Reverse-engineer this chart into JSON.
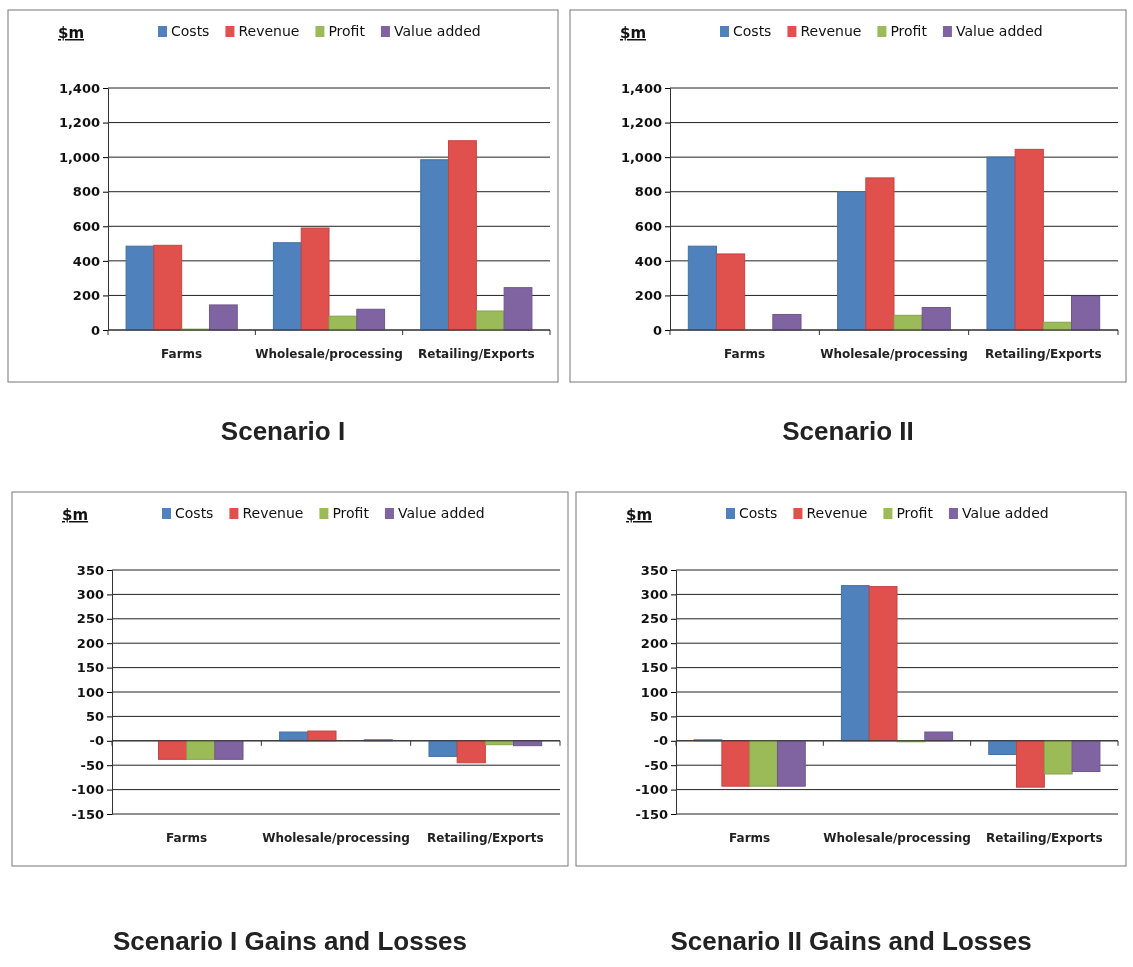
{
  "chart_data": [
    {
      "type": "bar",
      "title": "Scenario I",
      "ylabel": "$m",
      "categories": [
        "Farms",
        "Wholesale/processing",
        "Retailing/Exports"
      ],
      "legend": "top",
      "grid": "y",
      "ylim": [
        0,
        1400
      ],
      "yticks": [
        0,
        200,
        400,
        600,
        800,
        {
          "value": 1000,
          "label": "1,000"
        },
        {
          "value": 1200,
          "label": "1,200"
        },
        {
          "value": 1400,
          "label": "1,400"
        }
      ],
      "series": [
        {
          "name": "Costs",
          "color": "#4f81bd",
          "values": [
            485,
            505,
            985
          ]
        },
        {
          "name": "Revenue",
          "color": "#e0504d",
          "values": [
            490,
            590,
            1095
          ]
        },
        {
          "name": "Profit",
          "color": "#9bbb59",
          "values": [
            5,
            80,
            110
          ]
        },
        {
          "name": "Value added",
          "color": "#8064a2",
          "values": [
            145,
            120,
            245
          ]
        }
      ]
    },
    {
      "type": "bar",
      "title": "Scenario II",
      "ylabel": "$m",
      "categories": [
        "Farms",
        "Wholesale/processing",
        "Retailing/Exports"
      ],
      "legend": "top",
      "grid": "y",
      "ylim": [
        0,
        1400
      ],
      "yticks": [
        0,
        200,
        400,
        600,
        800,
        {
          "value": 1000,
          "label": "1,000"
        },
        {
          "value": 1200,
          "label": "1,200"
        },
        {
          "value": 1400,
          "label": "1,400"
        }
      ],
      "series": [
        {
          "name": "Costs",
          "color": "#4f81bd",
          "values": [
            485,
            800,
            1000
          ]
        },
        {
          "name": "Revenue",
          "color": "#e0504d",
          "values": [
            440,
            880,
            1045
          ]
        },
        {
          "name": "Profit",
          "color": "#9bbb59",
          "values": [
            0,
            85,
            45
          ]
        },
        {
          "name": "Value added",
          "color": "#8064a2",
          "values": [
            90,
            130,
            195
          ]
        }
      ]
    },
    {
      "type": "bar",
      "title": "Scenario I Gains and Losses",
      "ylabel": "$m",
      "categories": [
        "Farms",
        "Wholesale/processing",
        "Retailing/Exports"
      ],
      "legend": "top",
      "grid": "y",
      "ylim": [
        -150,
        350
      ],
      "yticks": [
        -150,
        -100,
        -50,
        {
          "value": 0,
          "label": "-0"
        },
        50,
        100,
        150,
        200,
        250,
        300,
        350
      ],
      "series": [
        {
          "name": "Costs",
          "color": "#4f81bd",
          "values": [
            0,
            18,
            -32
          ]
        },
        {
          "name": "Revenue",
          "color": "#e0504d",
          "values": [
            -38,
            20,
            -45
          ]
        },
        {
          "name": "Profit",
          "color": "#9bbb59",
          "values": [
            -38,
            0,
            -8
          ]
        },
        {
          "name": "Value added",
          "color": "#8064a2",
          "values": [
            -38,
            2,
            -10
          ]
        }
      ]
    },
    {
      "type": "bar",
      "title": "Scenario II Gains and Losses",
      "ylabel": "$m",
      "categories": [
        "Farms",
        "Wholesale/processing",
        "Retailing/Exports"
      ],
      "legend": "top",
      "grid": "y",
      "ylim": [
        -150,
        350
      ],
      "yticks": [
        -150,
        -100,
        -50,
        {
          "value": 0,
          "label": "-0"
        },
        50,
        100,
        150,
        200,
        250,
        300,
        350
      ],
      "series": [
        {
          "name": "Costs",
          "color": "#4f81bd",
          "values": [
            2,
            318,
            -28
          ]
        },
        {
          "name": "Revenue",
          "color": "#e0504d",
          "values": [
            -93,
            316,
            -95
          ]
        },
        {
          "name": "Profit",
          "color": "#9bbb59",
          "values": [
            -93,
            -2,
            -68
          ]
        },
        {
          "name": "Value added",
          "color": "#8064a2",
          "values": [
            -93,
            18,
            -63
          ]
        }
      ]
    }
  ]
}
